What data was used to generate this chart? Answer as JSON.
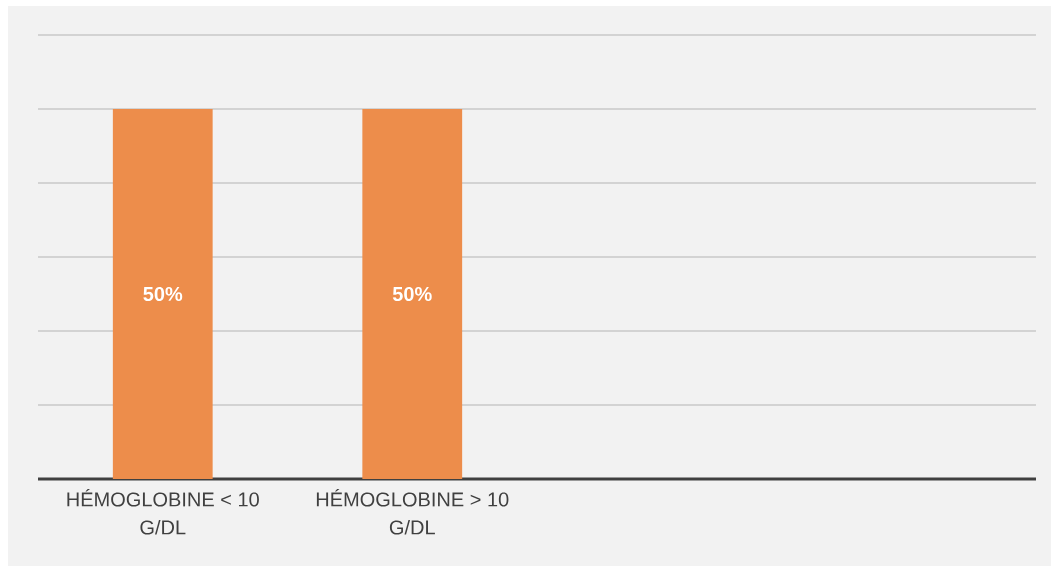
{
  "chart_data": {
    "type": "bar",
    "categories": [
      "HÉMOGLOBINE < 10 G/DL",
      "HÉMOGLOBINE > 10 G/DL",
      null,
      null
    ],
    "values": [
      50,
      50,
      null,
      null
    ],
    "value_labels": [
      "50%",
      "50%",
      null,
      null
    ],
    "color": "#ed8d4b",
    "ylim": [
      0,
      60
    ],
    "yticks": [
      {
        "value": 0,
        "label": null
      },
      {
        "value": 10,
        "label": null
      },
      {
        "value": 20,
        "label": null
      },
      {
        "value": 30,
        "label": null
      },
      {
        "value": 40,
        "label": null
      },
      {
        "value": 50,
        "label": null
      },
      {
        "value": 60,
        "label": null
      }
    ],
    "grid": "y",
    "tick_labels": "x"
  }
}
